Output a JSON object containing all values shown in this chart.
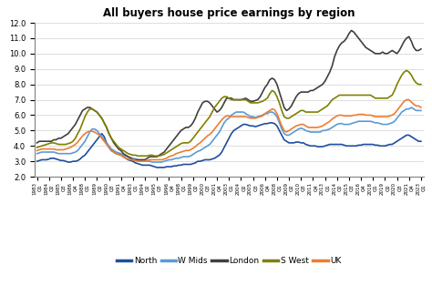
{
  "title": "All buyers house price earnings by region",
  "series_names": [
    "North",
    "W Mids",
    "London",
    "S West",
    "UK"
  ],
  "colors": [
    "#1f4e9d",
    "#5b9bd5",
    "#404040",
    "#808000",
    "#ed7d31"
  ],
  "ylim": [
    2.0,
    12.0
  ],
  "yticks": [
    2.0,
    3.0,
    4.0,
    5.0,
    6.0,
    7.0,
    8.0,
    9.0,
    10.0,
    11.0,
    12.0
  ],
  "linewidth": 1.2,
  "north": [
    3.0,
    3.05,
    3.1,
    3.1,
    3.1,
    3.15,
    3.2,
    3.2,
    3.15,
    3.1,
    3.05,
    3.05,
    3.0,
    2.95,
    2.95,
    3.0,
    3.0,
    3.05,
    3.15,
    3.3,
    3.4,
    3.6,
    3.8,
    4.0,
    4.2,
    4.4,
    4.6,
    4.8,
    4.6,
    4.2,
    3.9,
    3.7,
    3.6,
    3.5,
    3.45,
    3.4,
    3.3,
    3.2,
    3.1,
    3.05,
    3.0,
    2.9,
    2.85,
    2.8,
    2.75,
    2.75,
    2.75,
    2.75,
    2.7,
    2.65,
    2.6,
    2.6,
    2.6,
    2.6,
    2.65,
    2.65,
    2.65,
    2.7,
    2.7,
    2.75,
    2.75,
    2.8,
    2.8,
    2.8,
    2.8,
    2.85,
    2.9,
    3.0,
    3.0,
    3.05,
    3.1,
    3.1,
    3.1,
    3.15,
    3.2,
    3.3,
    3.4,
    3.6,
    3.9,
    4.2,
    4.5,
    4.8,
    5.0,
    5.1,
    5.2,
    5.3,
    5.4,
    5.4,
    5.35,
    5.3,
    5.3,
    5.25,
    5.3,
    5.35,
    5.4,
    5.45,
    5.45,
    5.5,
    5.5,
    5.45,
    5.3,
    5.0,
    4.7,
    4.4,
    4.3,
    4.2,
    4.2,
    4.2,
    4.25,
    4.25,
    4.2,
    4.2,
    4.1,
    4.05,
    4.0,
    4.0,
    4.0,
    3.95,
    3.95,
    3.95,
    4.0,
    4.05,
    4.1,
    4.1,
    4.1,
    4.1,
    4.1,
    4.1,
    4.05,
    4.0,
    4.0,
    4.0,
    4.0,
    4.0,
    4.05,
    4.05,
    4.1,
    4.1,
    4.1,
    4.1,
    4.1,
    4.05,
    4.05,
    4.0,
    4.0,
    4.0,
    4.05,
    4.1,
    4.1,
    4.2,
    4.3,
    4.4,
    4.5,
    4.6,
    4.7,
    4.7,
    4.6,
    4.5,
    4.4,
    4.3,
    4.3
  ],
  "wmids": [
    3.5,
    3.55,
    3.6,
    3.6,
    3.6,
    3.6,
    3.6,
    3.6,
    3.55,
    3.5,
    3.5,
    3.5,
    3.5,
    3.5,
    3.5,
    3.55,
    3.6,
    3.7,
    3.9,
    4.1,
    4.3,
    4.6,
    4.9,
    5.1,
    5.1,
    5.0,
    4.8,
    4.6,
    4.4,
    4.2,
    4.0,
    3.8,
    3.7,
    3.6,
    3.55,
    3.5,
    3.4,
    3.35,
    3.3,
    3.25,
    3.2,
    3.15,
    3.1,
    3.05,
    3.0,
    3.0,
    3.0,
    3.0,
    2.95,
    2.95,
    2.95,
    2.95,
    2.95,
    3.0,
    3.05,
    3.1,
    3.1,
    3.15,
    3.2,
    3.2,
    3.25,
    3.3,
    3.3,
    3.3,
    3.35,
    3.45,
    3.55,
    3.65,
    3.7,
    3.8,
    3.9,
    4.0,
    4.1,
    4.3,
    4.5,
    4.7,
    4.9,
    5.2,
    5.5,
    5.7,
    5.8,
    6.0,
    6.1,
    6.2,
    6.2,
    6.2,
    6.2,
    6.1,
    6.0,
    5.9,
    5.9,
    5.85,
    5.9,
    5.95,
    6.0,
    6.1,
    6.1,
    6.2,
    6.2,
    6.1,
    5.9,
    5.5,
    5.1,
    4.8,
    4.7,
    4.7,
    4.8,
    4.9,
    5.0,
    5.1,
    5.15,
    5.1,
    5.0,
    4.95,
    4.9,
    4.9,
    4.9,
    4.9,
    4.9,
    5.0,
    5.0,
    5.05,
    5.1,
    5.2,
    5.3,
    5.4,
    5.45,
    5.45,
    5.4,
    5.4,
    5.4,
    5.45,
    5.5,
    5.55,
    5.6,
    5.6,
    5.6,
    5.6,
    5.6,
    5.6,
    5.55,
    5.5,
    5.5,
    5.45,
    5.4,
    5.4,
    5.4,
    5.45,
    5.5,
    5.6,
    5.8,
    6.0,
    6.2,
    6.3,
    6.4,
    6.4,
    6.5,
    6.4,
    6.3,
    6.3,
    6.3
  ],
  "london": [
    4.2,
    4.3,
    4.3,
    4.3,
    4.3,
    4.3,
    4.3,
    4.4,
    4.4,
    4.5,
    4.5,
    4.6,
    4.7,
    4.8,
    5.0,
    5.2,
    5.4,
    5.7,
    6.0,
    6.3,
    6.4,
    6.5,
    6.5,
    6.4,
    6.3,
    6.2,
    6.0,
    5.8,
    5.5,
    5.2,
    4.8,
    4.5,
    4.2,
    4.0,
    3.8,
    3.7,
    3.5,
    3.4,
    3.3,
    3.2,
    3.1,
    3.1,
    3.1,
    3.1,
    3.1,
    3.1,
    3.2,
    3.3,
    3.3,
    3.3,
    3.3,
    3.4,
    3.5,
    3.6,
    3.8,
    4.0,
    4.2,
    4.4,
    4.6,
    4.8,
    5.0,
    5.1,
    5.2,
    5.2,
    5.3,
    5.5,
    5.8,
    6.2,
    6.5,
    6.8,
    6.9,
    6.9,
    6.8,
    6.6,
    6.4,
    6.2,
    6.3,
    6.5,
    6.8,
    7.1,
    7.1,
    7.1,
    7.0,
    7.0,
    7.0,
    7.0,
    7.05,
    7.1,
    7.0,
    6.9,
    6.9,
    6.95,
    7.0,
    7.2,
    7.5,
    7.8,
    8.0,
    8.3,
    8.4,
    8.3,
    8.0,
    7.5,
    7.0,
    6.5,
    6.3,
    6.4,
    6.6,
    6.9,
    7.2,
    7.4,
    7.5,
    7.5,
    7.5,
    7.5,
    7.6,
    7.6,
    7.7,
    7.8,
    7.9,
    8.0,
    8.2,
    8.5,
    8.8,
    9.2,
    9.8,
    10.2,
    10.5,
    10.7,
    10.8,
    11.0,
    11.3,
    11.5,
    11.4,
    11.2,
    11.0,
    10.8,
    10.6,
    10.4,
    10.3,
    10.2,
    10.1,
    10.0,
    10.0,
    10.0,
    10.1,
    10.0,
    10.0,
    10.1,
    10.2,
    10.1,
    10.0,
    10.2,
    10.5,
    10.8,
    11.0,
    11.1,
    10.8,
    10.4,
    10.2,
    10.2,
    10.3
  ],
  "swest": [
    3.9,
    3.95,
    4.0,
    4.05,
    4.1,
    4.15,
    4.2,
    4.2,
    4.15,
    4.1,
    4.1,
    4.1,
    4.1,
    4.15,
    4.2,
    4.3,
    4.5,
    4.8,
    5.1,
    5.5,
    5.9,
    6.2,
    6.4,
    6.4,
    6.3,
    6.2,
    6.0,
    5.8,
    5.5,
    5.2,
    4.8,
    4.5,
    4.3,
    4.1,
    3.9,
    3.8,
    3.7,
    3.6,
    3.5,
    3.45,
    3.4,
    3.4,
    3.35,
    3.35,
    3.35,
    3.35,
    3.35,
    3.4,
    3.4,
    3.35,
    3.35,
    3.35,
    3.4,
    3.45,
    3.55,
    3.65,
    3.75,
    3.85,
    3.95,
    4.05,
    4.15,
    4.2,
    4.2,
    4.2,
    4.3,
    4.5,
    4.7,
    4.9,
    5.1,
    5.3,
    5.5,
    5.7,
    5.9,
    6.2,
    6.5,
    6.7,
    6.9,
    7.1,
    7.2,
    7.2,
    7.1,
    7.0,
    7.0,
    7.0,
    7.0,
    7.0,
    7.0,
    7.0,
    6.9,
    6.8,
    6.8,
    6.8,
    6.8,
    6.85,
    6.9,
    7.0,
    7.1,
    7.4,
    7.6,
    7.5,
    7.2,
    6.8,
    6.3,
    5.9,
    5.8,
    5.8,
    5.9,
    6.0,
    6.1,
    6.2,
    6.3,
    6.3,
    6.2,
    6.2,
    6.2,
    6.2,
    6.2,
    6.2,
    6.3,
    6.4,
    6.5,
    6.6,
    6.8,
    7.0,
    7.1,
    7.2,
    7.3,
    7.3,
    7.3,
    7.3,
    7.3,
    7.3,
    7.3,
    7.3,
    7.3,
    7.3,
    7.3,
    7.3,
    7.3,
    7.3,
    7.2,
    7.1,
    7.1,
    7.1,
    7.1,
    7.1,
    7.1,
    7.2,
    7.3,
    7.6,
    8.0,
    8.3,
    8.6,
    8.8,
    8.9,
    8.8,
    8.6,
    8.3,
    8.1,
    8.0,
    8.0
  ],
  "uk": [
    3.7,
    3.75,
    3.8,
    3.8,
    3.8,
    3.8,
    3.8,
    3.8,
    3.75,
    3.75,
    3.75,
    3.75,
    3.8,
    3.85,
    3.9,
    4.0,
    4.1,
    4.25,
    4.45,
    4.65,
    4.8,
    4.9,
    4.95,
    4.95,
    4.9,
    4.8,
    4.7,
    4.5,
    4.3,
    4.1,
    3.9,
    3.75,
    3.6,
    3.5,
    3.45,
    3.4,
    3.3,
    3.2,
    3.15,
    3.1,
    3.1,
    3.05,
    3.0,
    3.0,
    3.0,
    3.0,
    3.05,
    3.1,
    3.1,
    3.1,
    3.1,
    3.1,
    3.1,
    3.15,
    3.2,
    3.3,
    3.35,
    3.4,
    3.5,
    3.55,
    3.6,
    3.65,
    3.7,
    3.7,
    3.75,
    3.85,
    3.95,
    4.1,
    4.2,
    4.35,
    4.5,
    4.65,
    4.75,
    4.9,
    5.1,
    5.3,
    5.5,
    5.7,
    5.85,
    5.95,
    5.95,
    5.9,
    5.9,
    5.9,
    5.9,
    5.9,
    5.9,
    5.9,
    5.85,
    5.8,
    5.8,
    5.8,
    5.85,
    5.9,
    5.95,
    6.1,
    6.2,
    6.3,
    6.4,
    6.35,
    6.1,
    5.7,
    5.3,
    5.0,
    4.9,
    5.0,
    5.1,
    5.2,
    5.3,
    5.35,
    5.4,
    5.4,
    5.3,
    5.2,
    5.2,
    5.2,
    5.2,
    5.2,
    5.25,
    5.3,
    5.4,
    5.5,
    5.6,
    5.75,
    5.85,
    5.95,
    6.0,
    6.0,
    5.95,
    5.95,
    5.95,
    5.95,
    6.0,
    6.0,
    6.05,
    6.05,
    6.05,
    6.0,
    6.0,
    6.0,
    5.95,
    5.9,
    5.9,
    5.9,
    5.9,
    5.9,
    5.9,
    5.95,
    6.0,
    6.1,
    6.3,
    6.5,
    6.7,
    6.9,
    7.0,
    7.0,
    6.85,
    6.7,
    6.6,
    6.6,
    6.5
  ]
}
